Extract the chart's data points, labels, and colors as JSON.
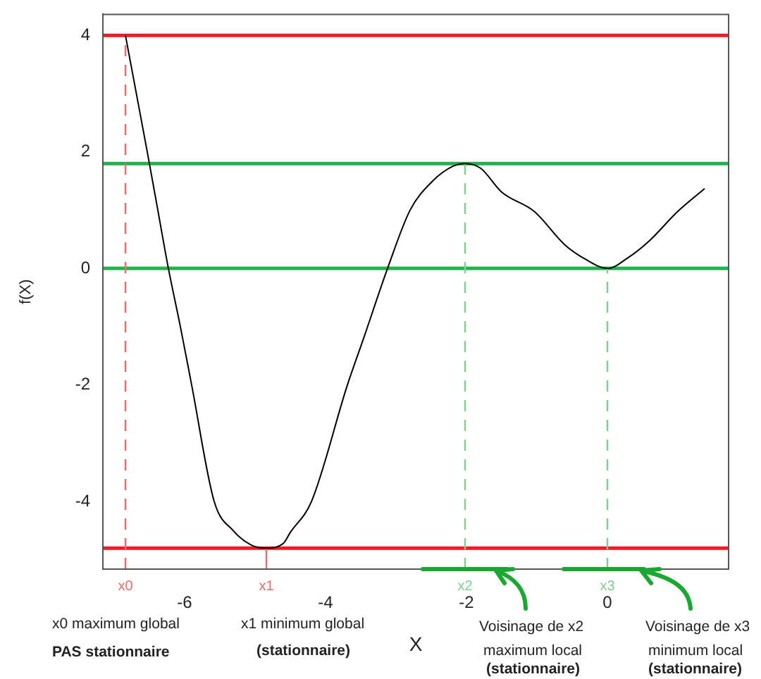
{
  "chart_data": {
    "type": "line",
    "xlabel": "X",
    "ylabel": "f(X)",
    "series": [
      {
        "color": "#000000",
        "x": [
          -6.84,
          -6.53,
          -6.38,
          -6.23,
          -6.06,
          -5.9,
          -5.58,
          -5.31,
          -5.05,
          -4.84,
          -4.6,
          -4.5,
          -4.2,
          -3.69,
          -3.46,
          -3.12,
          -2.8,
          -2.48,
          -2.2,
          -2.02,
          -1.8,
          -1.5,
          -1.04,
          -0.6,
          -0.3,
          0,
          0.3,
          0.6,
          1.0,
          1.38
        ],
        "values": [
          4,
          2,
          1,
          0,
          -1,
          -2,
          -4,
          -4.5,
          -4.75,
          -4.8,
          -4.72,
          -4.53,
          -4,
          -2,
          -1.2,
          0,
          1,
          1.5,
          1.75,
          1.8,
          1.72,
          1.31,
          0.98,
          0.4,
          0.15,
          0,
          0.19,
          0.48,
          0.98,
          1.37
        ]
      }
    ],
    "xlim": [
      -7.16,
      1.72
    ],
    "ylim": [
      -5.16,
      4.36
    ],
    "xticks": [
      -6,
      -4,
      -2,
      0
    ],
    "yticks": [
      -4,
      -2,
      0,
      2,
      4
    ],
    "grid": false,
    "legend": false,
    "marker": "none",
    "line_style": "solid",
    "ref_lines": [
      {
        "axis": "y",
        "value": 4,
        "color": "#ee1c24"
      },
      {
        "axis": "y",
        "value": 1.8,
        "color": "#22b14c"
      },
      {
        "axis": "y",
        "value": 0,
        "color": "#22b14c"
      },
      {
        "axis": "y",
        "value": -4.8,
        "color": "#ee1c24"
      },
      {
        "axis": "x",
        "value": -6.84,
        "label": "x0",
        "color": "#f26a6a",
        "line_style": "dashed"
      },
      {
        "axis": "x",
        "value": -4.84,
        "label": "x1",
        "color": "#f26a6a",
        "line_style": "solid"
      },
      {
        "axis": "x",
        "value": -2.02,
        "label": "x2",
        "color": "#7fd08f",
        "line_style": "dashed"
      },
      {
        "axis": "x",
        "value": 0,
        "label": "x3",
        "color": "#7fd08f",
        "line_style": "dashed"
      }
    ],
    "annotations": [
      "x0 maximum global",
      "PAS stationnaire",
      "x1 minimum global",
      "(stationnaire)",
      "Voisinage de x2",
      "maximum local",
      "(stationnaire)",
      "Voisinage de x3",
      "minimum local",
      "(stationnaire)"
    ]
  }
}
